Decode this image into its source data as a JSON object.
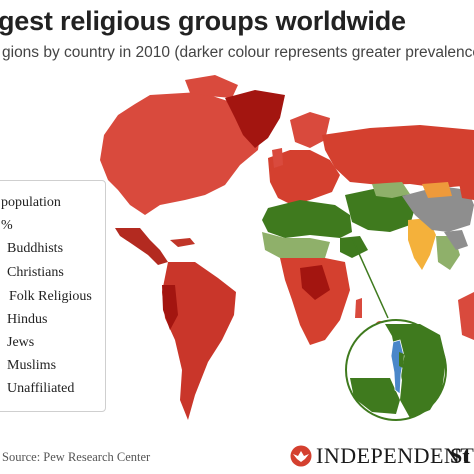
{
  "title": "gest religious groups worldwide",
  "subtitle": "gions by country in 2010 (darker colour represents greater prevalence",
  "legend": {
    "heading": "population",
    "subheading": "%",
    "items": [
      {
        "label": "Buddhists",
        "color": "#8e8e8e"
      },
      {
        "label": "Christians",
        "color": "#d9463a"
      },
      {
        "label": "Folk Religious",
        "color": "#ee9a3b"
      },
      {
        "label": "Hindus",
        "color": "#f4b13b"
      },
      {
        "label": "Jews",
        "color": "#4a87c9"
      },
      {
        "label": "Muslims",
        "color": "#3f7a1e"
      },
      {
        "label": "Unaffiliated",
        "color": "#f2c9a8"
      }
    ]
  },
  "source": "Source: Pew Research Center",
  "brand": {
    "name": "INDEPENDENT",
    "partner": "St"
  },
  "colors": {
    "christian_light": "#e06050",
    "christian_mid": "#d4402f",
    "christian_dark": "#a31510",
    "muslim_dark": "#3f7a1e",
    "muslim_light": "#8fb06a",
    "buddhist": "#8e8e8e",
    "hindu": "#f4b13b",
    "folk": "#ee9a3b",
    "jewish": "#4a87c9"
  }
}
